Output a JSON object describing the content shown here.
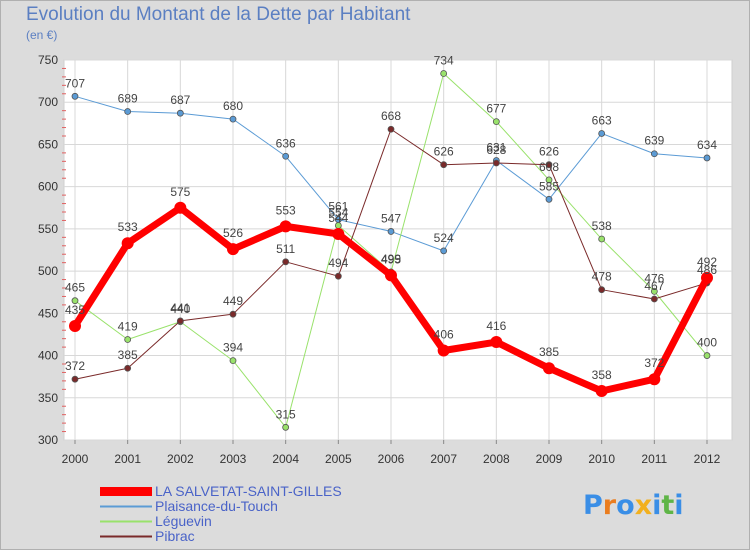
{
  "title": "Evolution du Montant de la Dette par Habitant",
  "subtitle": "(en €)",
  "logo_text": "Proxiti",
  "logo_colors": [
    "#3a8ee6",
    "#ea7d1f",
    "#3a8ee6",
    "#f2b01e",
    "#3a8ee6",
    "#5fb547",
    "#3a8ee6"
  ],
  "chart_data": {
    "type": "line",
    "x": [
      "2000",
      "2001",
      "2002",
      "2003",
      "2004",
      "2005",
      "2006",
      "2007",
      "2008",
      "2009",
      "2010",
      "2011",
      "2012"
    ],
    "ylim": [
      300,
      750
    ],
    "yticks": [
      300,
      350,
      400,
      450,
      500,
      550,
      600,
      650,
      700,
      750
    ],
    "grid": true,
    "legend_position": "bottom-left",
    "series": [
      {
        "name": "LA SALVETAT-SAINT-GILLES",
        "color": "#ff0000",
        "width": 7,
        "marker": 6,
        "values": [
          435,
          533,
          575,
          526,
          553,
          544,
          495,
          406,
          416,
          385,
          358,
          372,
          492
        ],
        "labels": [
          "435",
          "533",
          "575",
          "526",
          "553",
          "544",
          "495",
          "406",
          "416",
          "385",
          "358",
          "372",
          "492"
        ]
      },
      {
        "name": "Plaisance-du-Touch",
        "color": "#5b9bd5",
        "width": 1,
        "marker": 3,
        "values": [
          707,
          689,
          687,
          680,
          636,
          561,
          547,
          524,
          631,
          585,
          663,
          639,
          634
        ],
        "labels": [
          "707",
          "689",
          "687",
          "680",
          "636",
          "561",
          "547",
          "524",
          "631",
          "585",
          "663",
          "639",
          "634"
        ]
      },
      {
        "name": "Léguevin",
        "color": "#99e26b",
        "width": 1,
        "marker": 3,
        "values": [
          465,
          419,
          440,
          394,
          315,
          554,
          499,
          734,
          677,
          608,
          538,
          476,
          400
        ],
        "labels": [
          "465",
          "419",
          "440",
          "394",
          "315",
          "554",
          "499",
          "734",
          "677",
          "608",
          "538",
          "476",
          "400"
        ]
      },
      {
        "name": "Pibrac",
        "color": "#7a2a2a",
        "width": 1,
        "marker": 3,
        "values": [
          372,
          385,
          441,
          449,
          511,
          494,
          668,
          626,
          628,
          626,
          478,
          467,
          486
        ],
        "labels": [
          "372",
          "385",
          "441",
          "449",
          "511",
          "494",
          "668",
          "626",
          "628",
          "626",
          "478",
          "467",
          "486"
        ]
      }
    ]
  }
}
